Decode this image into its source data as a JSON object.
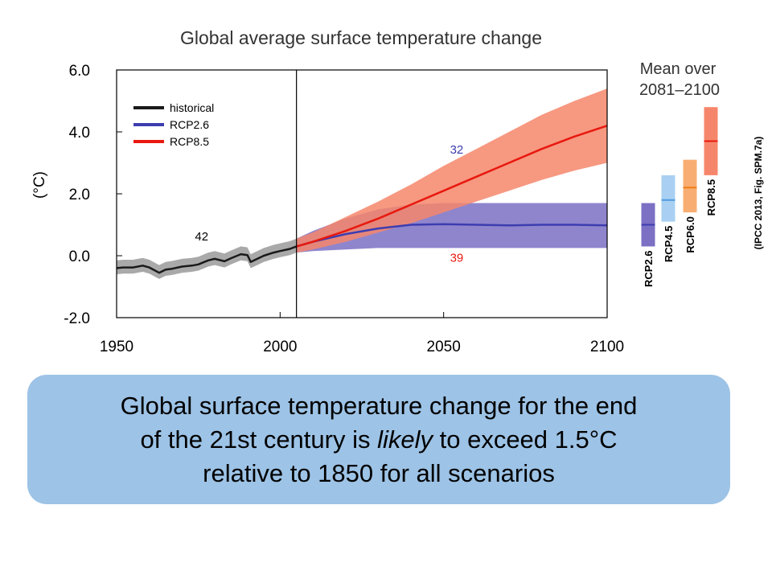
{
  "chart_data": {
    "type": "line",
    "title": "Global average surface temperature change",
    "ylabel": "(°C)",
    "xlabel": "",
    "xlim": [
      1950,
      2100
    ],
    "ylim": [
      -2.0,
      6.0
    ],
    "xticks": [
      "1950",
      "2000",
      "2050",
      "2100"
    ],
    "yticks": [
      "6.0",
      "4.0",
      "2.0",
      "0.0",
      "-2.0"
    ],
    "grid": false,
    "legend_position": "top-left",
    "divider_year": 2005,
    "series": [
      {
        "name": "historical",
        "color": "#1a1a1a",
        "band_color": "#9a9a9a",
        "model_count": "42",
        "x": [
          1950,
          1952,
          1955,
          1958,
          1960,
          1963,
          1965,
          1967,
          1970,
          1973,
          1975,
          1978,
          1980,
          1983,
          1985,
          1988,
          1990,
          1991,
          1993,
          1995,
          1998,
          2000,
          2003,
          2005
        ],
        "y": [
          -0.4,
          -0.38,
          -0.38,
          -0.32,
          -0.38,
          -0.55,
          -0.45,
          -0.42,
          -0.35,
          -0.32,
          -0.28,
          -0.15,
          -0.1,
          -0.18,
          -0.08,
          0.05,
          0.02,
          -0.2,
          -0.1,
          0.0,
          0.1,
          0.15,
          0.22,
          0.3
        ],
        "band_lower": [
          -0.6,
          -0.58,
          -0.58,
          -0.52,
          -0.58,
          -0.75,
          -0.65,
          -0.62,
          -0.55,
          -0.52,
          -0.48,
          -0.35,
          -0.3,
          -0.38,
          -0.28,
          -0.15,
          -0.18,
          -0.4,
          -0.3,
          -0.2,
          -0.1,
          -0.05,
          0.02,
          0.1
        ],
        "band_upper": [
          -0.15,
          -0.13,
          -0.13,
          -0.07,
          -0.13,
          -0.3,
          -0.2,
          -0.17,
          -0.1,
          -0.07,
          -0.03,
          0.1,
          0.15,
          0.07,
          0.17,
          0.3,
          0.27,
          0.05,
          0.15,
          0.25,
          0.35,
          0.4,
          0.47,
          0.55
        ]
      },
      {
        "name": "RCP2.6",
        "color": "#3d3db0",
        "band_color": "#7b70c4",
        "model_count": "32",
        "x": [
          2005,
          2010,
          2020,
          2030,
          2040,
          2050,
          2060,
          2070,
          2080,
          2090,
          2100
        ],
        "y": [
          0.3,
          0.45,
          0.7,
          0.88,
          1.0,
          1.02,
          1.0,
          0.98,
          1.0,
          1.0,
          0.98
        ],
        "band_lower": [
          0.1,
          0.15,
          0.2,
          0.25,
          0.25,
          0.25,
          0.25,
          0.25,
          0.25,
          0.25,
          0.25
        ],
        "band_upper": [
          0.55,
          0.8,
          1.2,
          1.5,
          1.65,
          1.7,
          1.7,
          1.7,
          1.7,
          1.7,
          1.7
        ]
      },
      {
        "name": "RCP8.5",
        "color": "#e8190f",
        "band_color": "#f6866b",
        "model_count": "39",
        "x": [
          2005,
          2010,
          2020,
          2030,
          2040,
          2050,
          2060,
          2070,
          2080,
          2090,
          2100
        ],
        "y": [
          0.3,
          0.45,
          0.8,
          1.2,
          1.65,
          2.1,
          2.55,
          3.0,
          3.45,
          3.85,
          4.2
        ],
        "band_lower": [
          0.1,
          0.2,
          0.45,
          0.75,
          1.05,
          1.4,
          1.75,
          2.1,
          2.45,
          2.75,
          3.0
        ],
        "band_upper": [
          0.55,
          0.75,
          1.25,
          1.75,
          2.3,
          2.9,
          3.45,
          4.0,
          4.55,
          5.0,
          5.4
        ]
      }
    ],
    "side_panel": {
      "title_line1": "Mean over",
      "title_line2": "2081–2100",
      "bars": [
        {
          "label": "RCP2.6",
          "low": 0.3,
          "mean": 1.0,
          "high": 1.7,
          "fill": "#7b70c4",
          "line": "#3d3db0"
        },
        {
          "label": "RCP4.5",
          "low": 1.1,
          "mean": 1.8,
          "high": 2.6,
          "fill": "#a9d0f2",
          "line": "#4f9be0"
        },
        {
          "label": "RCP6.0",
          "low": 1.4,
          "mean": 2.2,
          "high": 3.1,
          "fill": "#f8ae72",
          "line": "#ef7d1a"
        },
        {
          "label": "RCP8.5",
          "low": 2.6,
          "mean": 3.7,
          "high": 4.8,
          "fill": "#f6866b",
          "line": "#e8190f"
        }
      ]
    },
    "source_note": "(IPCC 2013, Fig. SPM.7a)"
  },
  "callout": {
    "line1": "Global surface temperature change for the end",
    "line2_before": "of the 21st century is ",
    "line2_italic": "likely",
    "line2_after": " to exceed 1.5°C",
    "line3": "relative to 1850 for all scenarios"
  }
}
